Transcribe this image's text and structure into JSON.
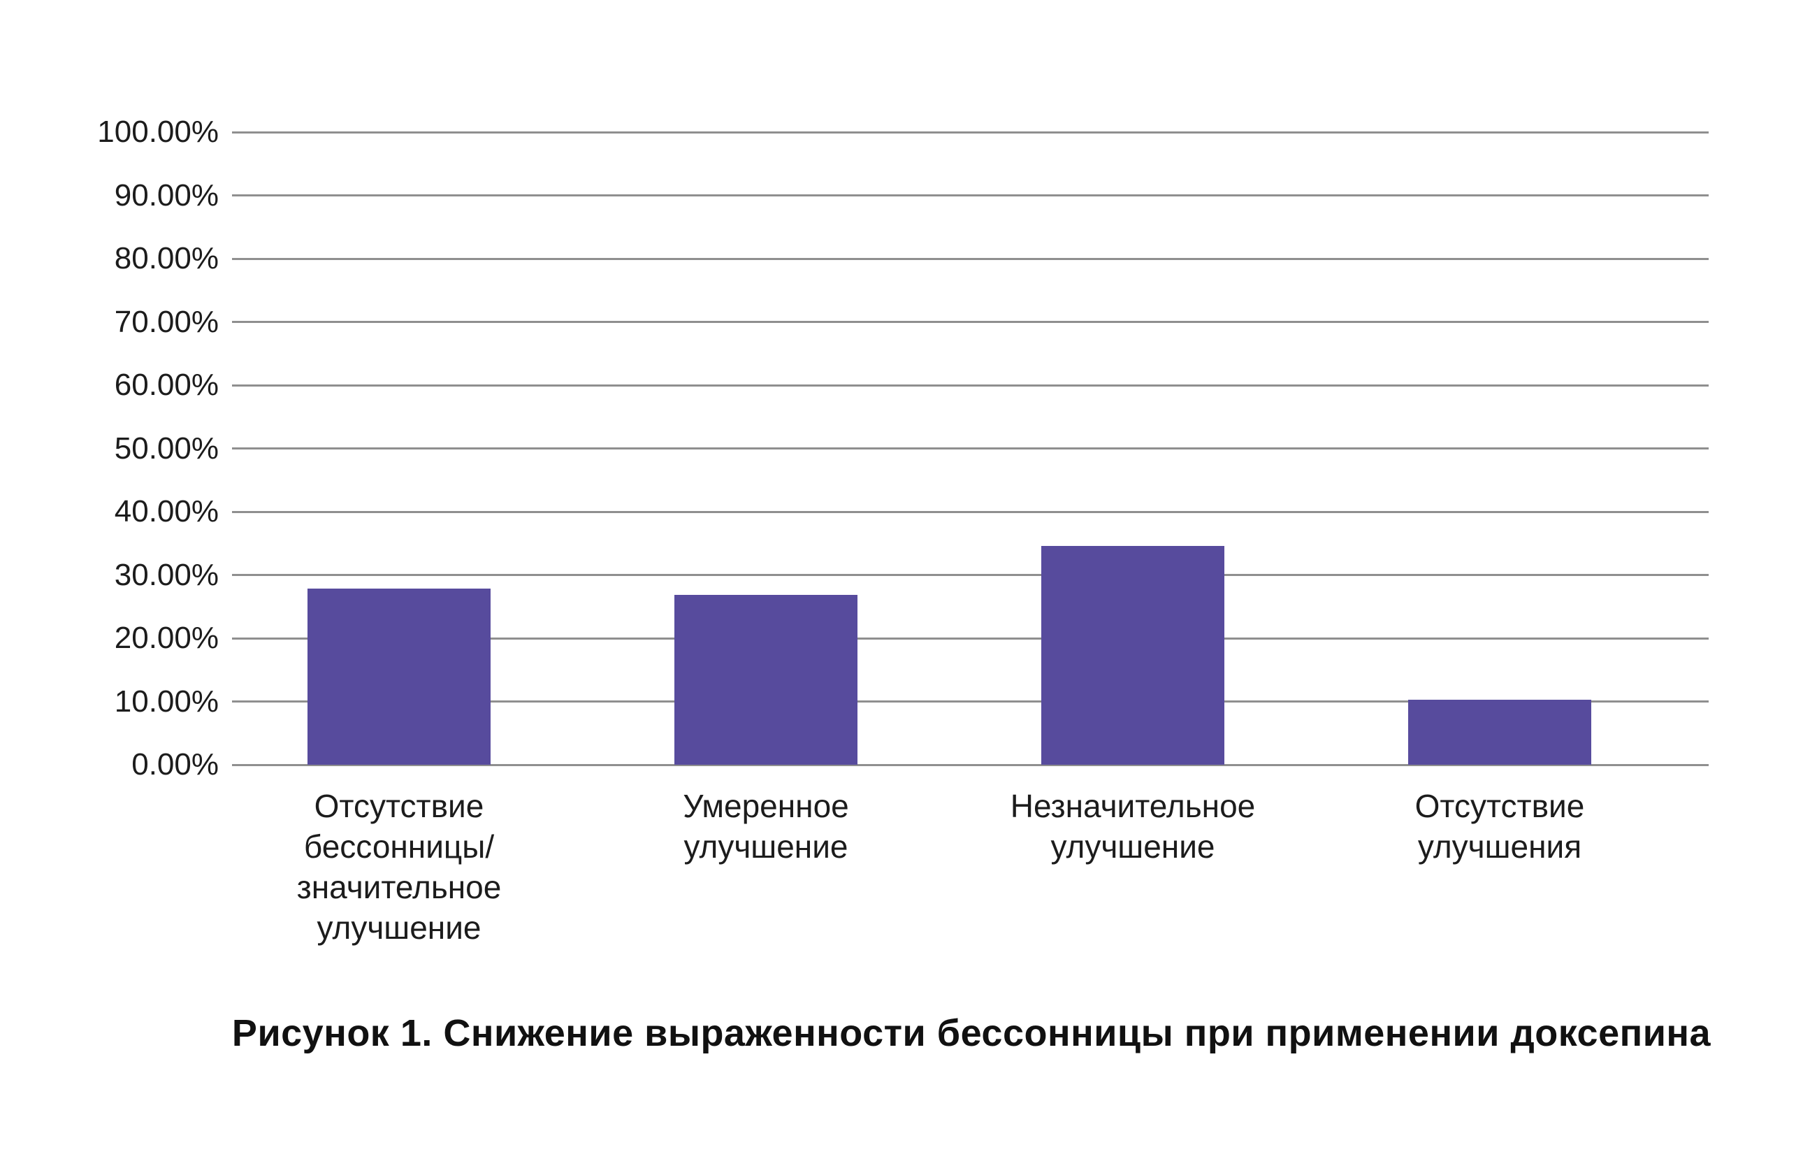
{
  "figure": {
    "caption": "Рисунок 1. Снижение выраженности бессонницы при применении доксепина"
  },
  "chart_data": {
    "type": "bar",
    "title": "",
    "caption": "Рисунок 1. Снижение выраженности бессонницы при применении доксепина",
    "categories": [
      "Отсутствие бессонницы/ значительное улучшение",
      "Умеренное улучшение",
      "Незначительное улучшение",
      "Отсутствие улучшения"
    ],
    "category_lines": [
      [
        "Отсутствие",
        "бессонницы/",
        "значительное",
        "улучшение"
      ],
      [
        "Умеренное",
        "улучшение"
      ],
      [
        "Незначительное",
        "улучшение"
      ],
      [
        "Отсутствие",
        "улучшения"
      ]
    ],
    "values": [
      27.8,
      26.9,
      34.6,
      10.3
    ],
    "unit": "%",
    "ylim": [
      0,
      100
    ],
    "y_ticks": [
      {
        "value": 0,
        "label": "0.00%"
      },
      {
        "value": 10,
        "label": "10.00%"
      },
      {
        "value": 20,
        "label": "20.00%"
      },
      {
        "value": 30,
        "label": "30.00%"
      },
      {
        "value": 40,
        "label": "40.00%"
      },
      {
        "value": 50,
        "label": "50.00%"
      },
      {
        "value": 60,
        "label": "60.00%"
      },
      {
        "value": 70,
        "label": "70.00%"
      },
      {
        "value": 80,
        "label": "80.00%"
      },
      {
        "value": 90,
        "label": "90.00%"
      },
      {
        "value": 100,
        "label": "100.00%"
      }
    ],
    "grid": "horizontal",
    "legend": "none",
    "xlabel": "",
    "ylabel": ""
  },
  "colors": {
    "bar": "#574B9D",
    "gridline": "#8F8F8F",
    "text": "#1C1C1C",
    "background": "#FFFFFF"
  }
}
